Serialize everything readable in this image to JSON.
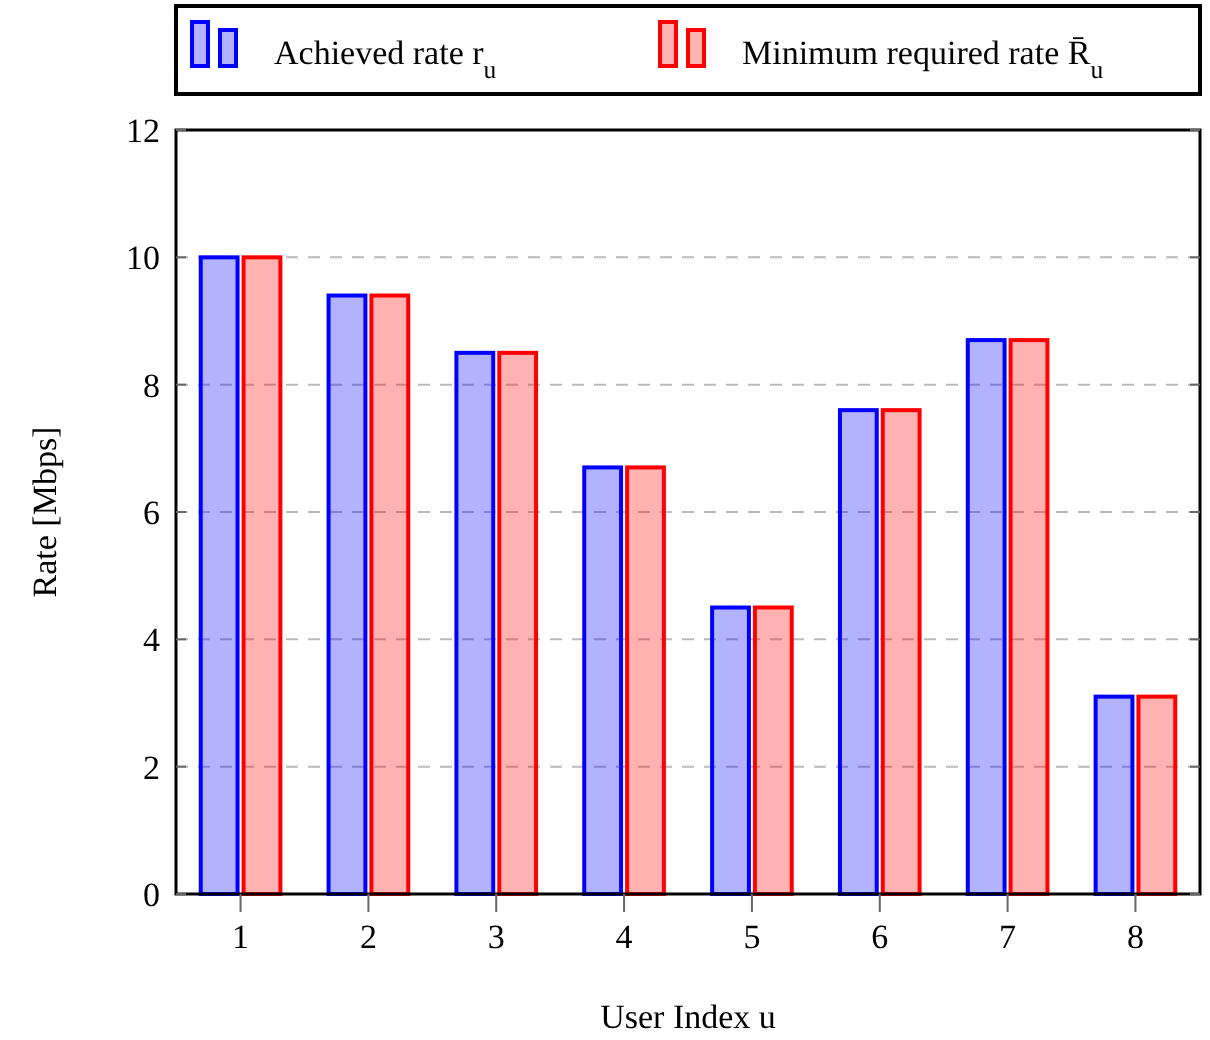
{
  "chart_data": {
    "type": "bar",
    "xlabel": "User Index u",
    "ylabel": "Rate [Mbps]",
    "categories": [
      "1",
      "2",
      "3",
      "4",
      "5",
      "6",
      "7",
      "8"
    ],
    "series": [
      {
        "name": "Achieved rate r$_{u}$",
        "color": "#0000ff",
        "values": [
          10,
          9.4,
          8.5,
          6.7,
          4.5,
          7.6,
          8.7,
          3.1
        ]
      },
      {
        "name": "Minimum required rate R̄$_{u}$",
        "color": "#ff0000",
        "values": [
          10,
          9.4,
          8.5,
          6.7,
          4.5,
          7.6,
          8.7,
          3.1
        ]
      }
    ],
    "ylim": [
      0,
      12
    ],
    "yticks": [
      0,
      2,
      4,
      6,
      8,
      10,
      12
    ],
    "grid": "y",
    "legend": "top"
  }
}
